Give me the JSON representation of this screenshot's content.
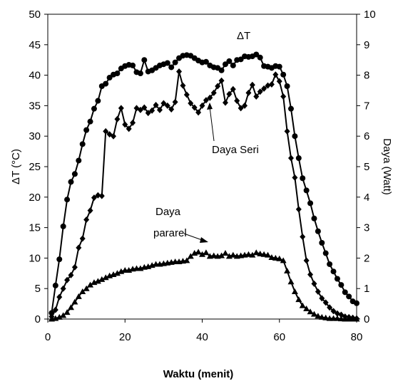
{
  "chart_data": {
    "type": "line",
    "title": "",
    "xlabel": "Waktu (menit)",
    "ylabel": "ΔT (°C)",
    "y2label": "Daya (Watt)",
    "xlim": [
      0,
      80
    ],
    "ylim": [
      0,
      50
    ],
    "y2lim": [
      0,
      10
    ],
    "xticks": [
      0,
      20,
      40,
      60,
      80
    ],
    "yticks": [
      0,
      5,
      10,
      15,
      20,
      25,
      30,
      35,
      40,
      45,
      50
    ],
    "y2ticks": [
      0,
      1,
      2,
      3,
      4,
      5,
      6,
      7,
      8,
      9,
      10
    ],
    "grid": false,
    "legend": "none",
    "annotations": [
      {
        "text": "ΔT",
        "series": "ΔT"
      },
      {
        "text": "Daya Seri",
        "series": "Daya Seri"
      },
      {
        "text": "Daya",
        "series": "Daya pararel"
      },
      {
        "text": "pararel",
        "series": "Daya pararel"
      }
    ],
    "series": [
      {
        "name": "ΔT",
        "axis": "left",
        "marker": "circle",
        "x": [
          1,
          2,
          3,
          4,
          5,
          6,
          7,
          8,
          9,
          10,
          11,
          12,
          13,
          14,
          15,
          16,
          17,
          18,
          19,
          20,
          21,
          22,
          23,
          24,
          25,
          26,
          27,
          28,
          29,
          30,
          31,
          32,
          33,
          34,
          35,
          36,
          37,
          38,
          39,
          40,
          41,
          42,
          43,
          44,
          45,
          46,
          47,
          48,
          49,
          50,
          51,
          52,
          53,
          54,
          55,
          56,
          57,
          58,
          59,
          60,
          61,
          62,
          63,
          64,
          65,
          66,
          67,
          68,
          69,
          70,
          71,
          72,
          73,
          74,
          75,
          76,
          77,
          78,
          79,
          80
        ],
        "values": [
          1.0,
          5.5,
          9.8,
          15.2,
          19.6,
          22.5,
          23.8,
          26.0,
          28.7,
          31.0,
          32.4,
          34.5,
          35.8,
          38.2,
          38.6,
          39.6,
          40.1,
          40.3,
          41.1,
          41.5,
          41.7,
          41.6,
          40.5,
          40.3,
          42.5,
          40.6,
          40.8,
          41.2,
          41.6,
          41.8,
          42.0,
          41.3,
          42.1,
          42.8,
          43.2,
          43.3,
          43.2,
          42.8,
          42.4,
          42.1,
          42.2,
          41.6,
          41.3,
          41.2,
          40.8,
          41.8,
          42.3,
          41.6,
          42.5,
          42.6,
          43.1,
          43.0,
          43.1,
          43.4,
          42.9,
          41.5,
          41.4,
          41.2,
          41.5,
          41.4,
          40.1,
          38.2,
          34.5,
          30.0,
          26.4,
          23.1,
          21.1,
          19.0,
          16.5,
          14.4,
          12.5,
          10.8,
          9.0,
          7.8,
          6.6,
          5.6,
          4.4,
          3.7,
          2.9,
          2.6
        ]
      },
      {
        "name": "Daya Seri",
        "axis": "right",
        "marker": "diamond",
        "x": [
          1,
          2,
          3,
          4,
          5,
          6,
          7,
          8,
          9,
          10,
          11,
          12,
          13,
          14,
          15,
          16,
          17,
          18,
          19,
          20,
          21,
          22,
          23,
          24,
          25,
          26,
          27,
          28,
          29,
          30,
          31,
          32,
          33,
          34,
          35,
          36,
          37,
          38,
          39,
          40,
          41,
          42,
          43,
          44,
          45,
          46,
          47,
          48,
          49,
          50,
          51,
          52,
          53,
          54,
          55,
          56,
          57,
          58,
          59,
          60,
          61,
          62,
          63,
          64,
          65,
          66,
          67,
          68,
          69,
          70,
          71,
          72,
          73,
          74,
          75,
          76,
          77,
          78,
          79,
          80
        ],
        "values": [
          0.08,
          0.3,
          0.72,
          1.0,
          1.28,
          1.44,
          1.7,
          2.34,
          2.64,
          3.26,
          3.56,
          3.98,
          4.06,
          4.04,
          6.16,
          6.06,
          6.0,
          6.56,
          6.92,
          6.38,
          6.24,
          6.44,
          6.92,
          6.86,
          6.94,
          6.76,
          6.84,
          7.02,
          6.86,
          7.08,
          7.0,
          6.88,
          7.12,
          8.12,
          7.66,
          7.36,
          7.08,
          6.94,
          6.78,
          7.0,
          7.18,
          7.26,
          7.42,
          7.64,
          7.82,
          7.1,
          7.38,
          7.54,
          7.16,
          6.92,
          7.0,
          7.42,
          7.68,
          7.3,
          7.46,
          7.56,
          7.66,
          7.7,
          8.02,
          7.8,
          7.3,
          6.16,
          5.28,
          4.64,
          3.6,
          2.7,
          1.92,
          1.46,
          1.16,
          0.9,
          0.68,
          0.54,
          0.38,
          0.26,
          0.18,
          0.14,
          0.08,
          0.06,
          0.04,
          0.02
        ]
      },
      {
        "name": "Daya pararel",
        "axis": "right",
        "marker": "triangle",
        "x": [
          1,
          2,
          3,
          4,
          5,
          6,
          7,
          8,
          9,
          10,
          11,
          12,
          13,
          14,
          15,
          16,
          17,
          18,
          19,
          20,
          21,
          22,
          23,
          24,
          25,
          26,
          27,
          28,
          29,
          30,
          31,
          32,
          33,
          34,
          35,
          36,
          37,
          38,
          39,
          40,
          41,
          42,
          43,
          44,
          45,
          46,
          47,
          48,
          49,
          50,
          51,
          52,
          53,
          54,
          55,
          56,
          57,
          58,
          59,
          60,
          61,
          62,
          63,
          64,
          65,
          66,
          67,
          68,
          69,
          70,
          71,
          72,
          73,
          74,
          75,
          76,
          77,
          78,
          79,
          80
        ],
        "values": [
          0.0,
          0.02,
          0.06,
          0.12,
          0.22,
          0.38,
          0.56,
          0.74,
          0.9,
          1.0,
          1.12,
          1.2,
          1.24,
          1.3,
          1.36,
          1.42,
          1.46,
          1.5,
          1.56,
          1.6,
          1.6,
          1.64,
          1.66,
          1.66,
          1.7,
          1.72,
          1.76,
          1.8,
          1.8,
          1.82,
          1.84,
          1.86,
          1.88,
          1.88,
          1.9,
          1.92,
          2.06,
          2.16,
          2.2,
          2.12,
          2.18,
          2.06,
          2.08,
          2.06,
          2.08,
          2.16,
          2.06,
          2.1,
          2.06,
          2.08,
          2.1,
          2.12,
          2.1,
          2.18,
          2.14,
          2.12,
          2.1,
          2.02,
          2.0,
          1.98,
          1.92,
          1.58,
          1.22,
          0.9,
          0.64,
          0.44,
          0.34,
          0.24,
          0.16,
          0.1,
          0.06,
          0.04,
          0.02,
          0.02,
          0.02,
          0.01,
          0.0,
          0.0,
          0.0,
          0.0
        ]
      }
    ]
  }
}
